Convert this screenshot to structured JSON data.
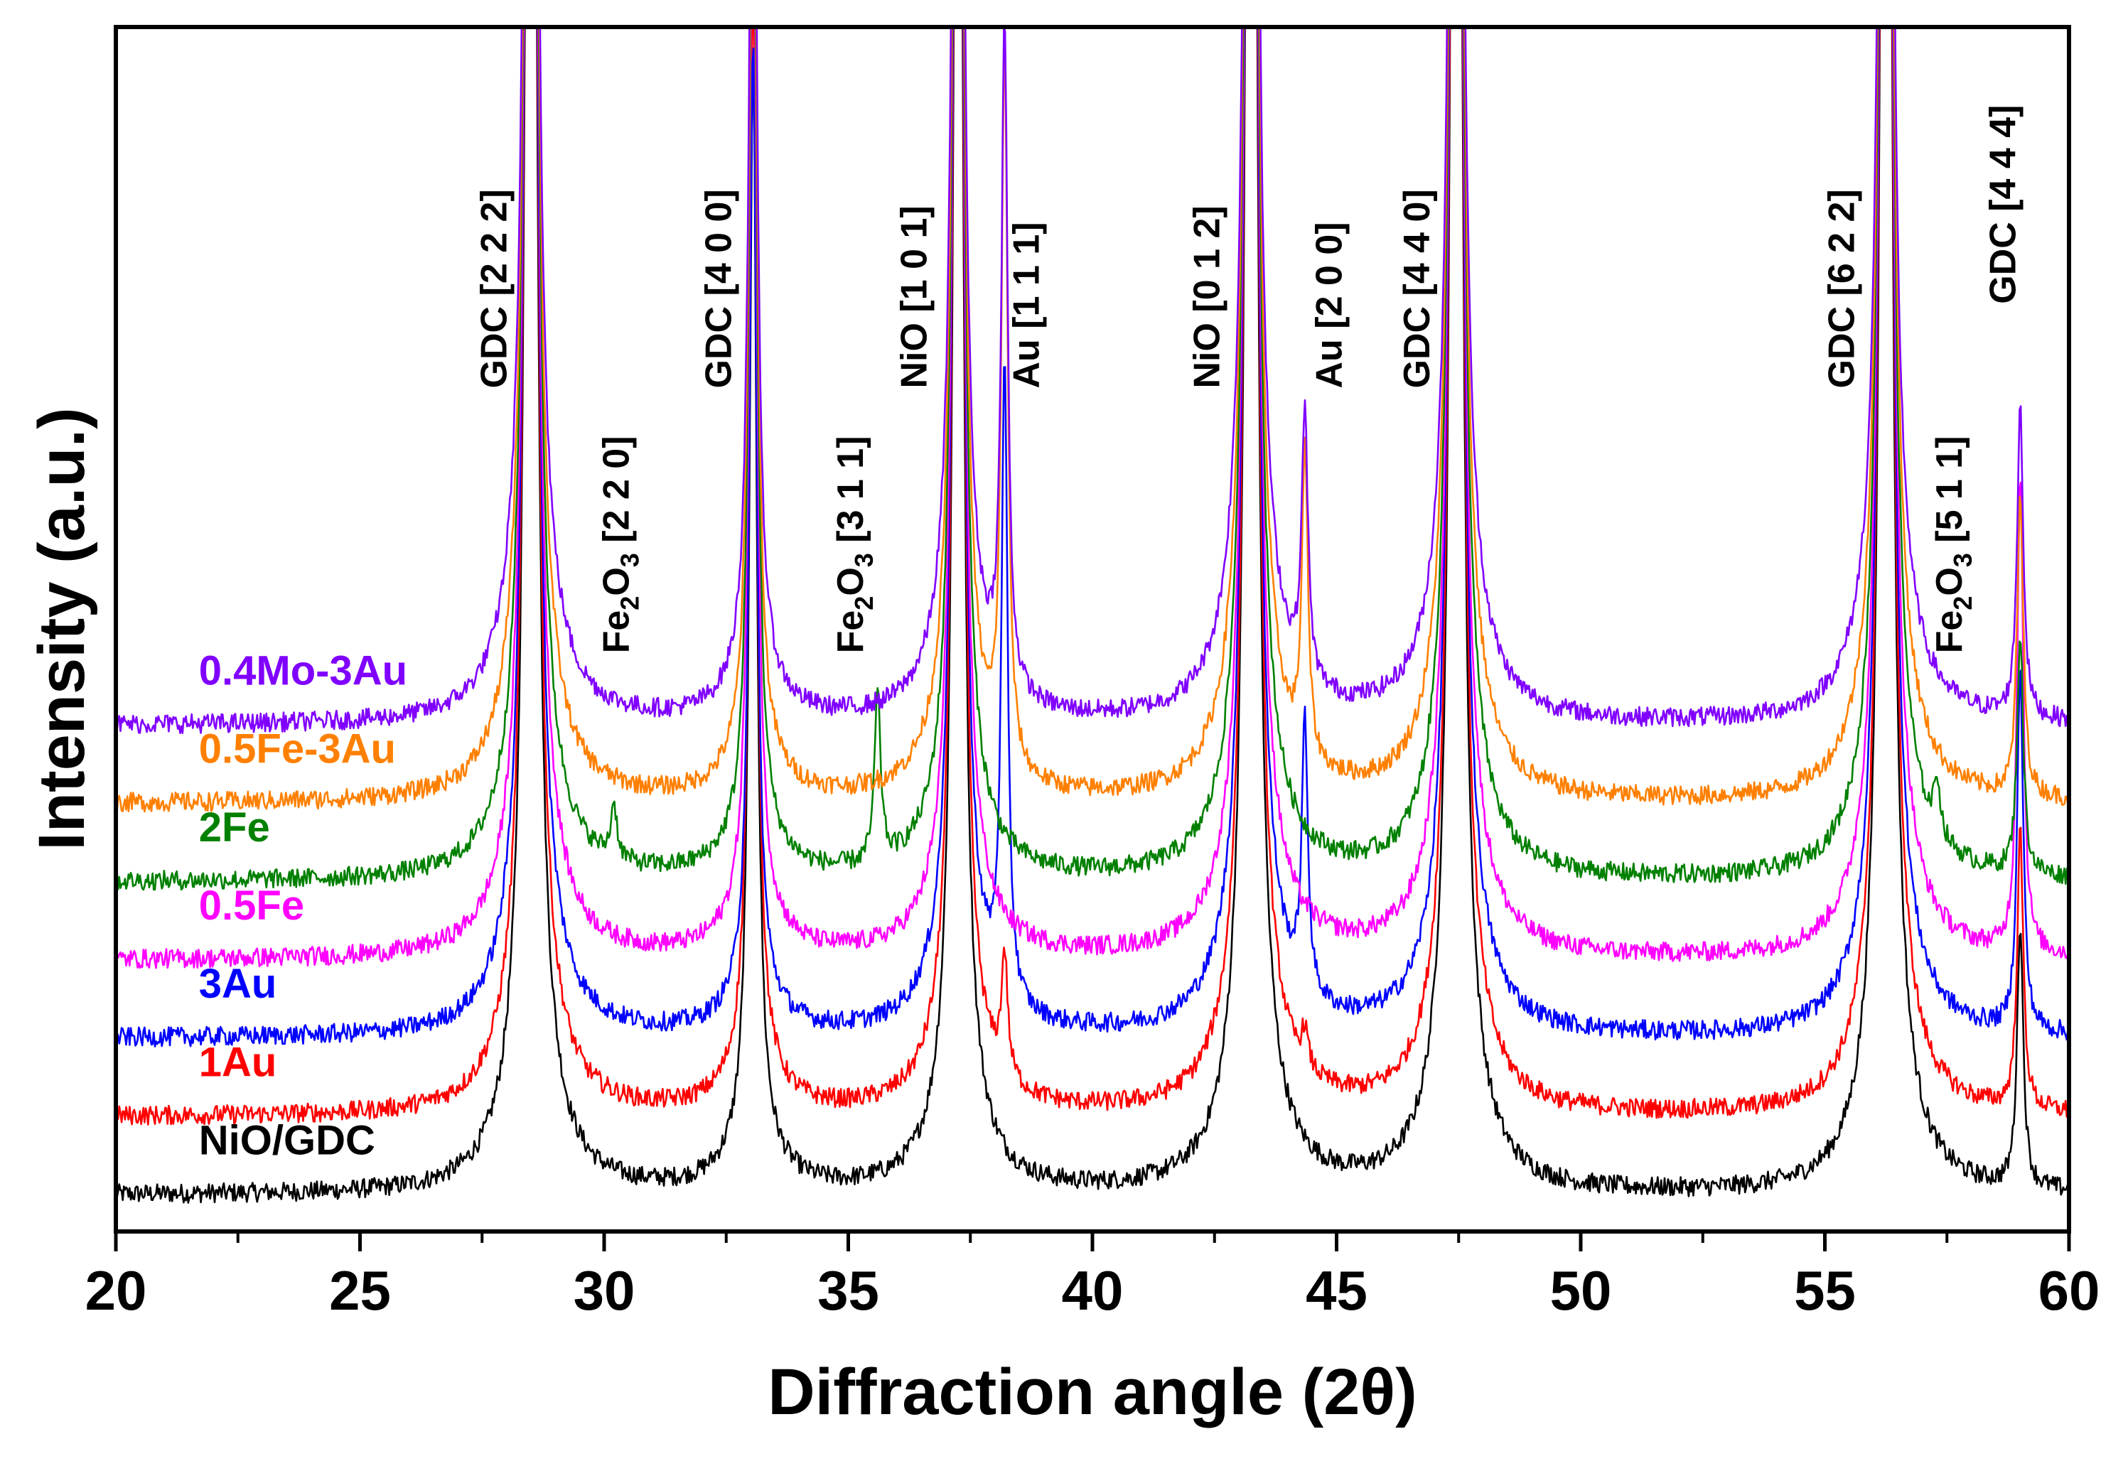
{
  "chart_data": {
    "type": "line",
    "title": "",
    "xlabel": "Diffraction angle (2θ)",
    "ylabel": "Intensity (a.u.)",
    "xlim": [
      20,
      60
    ],
    "ylim": [
      0,
      100
    ],
    "xticks": [
      20,
      25,
      30,
      35,
      40,
      45,
      50,
      55,
      60
    ],
    "x_minor_step": 2.5,
    "grid": false,
    "legend": "inline labels at left",
    "series": [
      {
        "name": "NiO/GDC",
        "color": "#000000",
        "offset": 3,
        "peaks": [
          [
            28.5,
            250
          ],
          [
            33.05,
            90
          ],
          [
            37.25,
            180
          ],
          [
            43.25,
            250
          ],
          [
            47.45,
            250
          ],
          [
            56.25,
            250
          ],
          [
            59.0,
            22
          ]
        ]
      },
      {
        "name": "1Au",
        "color": "#ff0000",
        "offset": 9.5,
        "peaks": [
          [
            28.5,
            250
          ],
          [
            33.05,
            90
          ],
          [
            37.25,
            180
          ],
          [
            38.2,
            10
          ],
          [
            43.25,
            250
          ],
          [
            44.35,
            3
          ],
          [
            47.45,
            250
          ],
          [
            56.25,
            250
          ],
          [
            59.0,
            23
          ]
        ]
      },
      {
        "name": "3Au",
        "color": "#0000ff",
        "offset": 16,
        "peaks": [
          [
            28.5,
            250
          ],
          [
            33.05,
            78
          ],
          [
            37.25,
            180
          ],
          [
            38.2,
            52
          ],
          [
            43.25,
            250
          ],
          [
            44.35,
            22
          ],
          [
            47.45,
            250
          ],
          [
            56.25,
            250
          ],
          [
            59.0,
            30
          ]
        ]
      },
      {
        "name": "0.5Fe",
        "color": "#ff00ff",
        "offset": 22.5,
        "peaks": [
          [
            28.5,
            250
          ],
          [
            33.05,
            90
          ],
          [
            37.25,
            180
          ],
          [
            43.25,
            250
          ],
          [
            47.45,
            250
          ],
          [
            56.25,
            250
          ],
          [
            59.0,
            40
          ]
        ]
      },
      {
        "name": "2Fe",
        "color": "#008000",
        "offset": 29,
        "peaks": [
          [
            28.5,
            250
          ],
          [
            30.2,
            4.5
          ],
          [
            33.05,
            90
          ],
          [
            35.6,
            14
          ],
          [
            37.25,
            180
          ],
          [
            43.25,
            250
          ],
          [
            47.45,
            250
          ],
          [
            56.25,
            250
          ],
          [
            57.3,
            4.5
          ],
          [
            59.0,
            20
          ]
        ]
      },
      {
        "name": "0.5Fe-3Au",
        "color": "#ff8000",
        "offset": 35.5,
        "peaks": [
          [
            28.5,
            250
          ],
          [
            33.05,
            90
          ],
          [
            37.25,
            180
          ],
          [
            38.2,
            60
          ],
          [
            43.25,
            250
          ],
          [
            44.35,
            25
          ],
          [
            47.45,
            250
          ],
          [
            56.25,
            250
          ],
          [
            59.0,
            25
          ]
        ]
      },
      {
        "name": "0.4Mo-3Au",
        "color": "#8000ff",
        "offset": 42,
        "peaks": [
          [
            28.5,
            250
          ],
          [
            33.05,
            90
          ],
          [
            37.25,
            180
          ],
          [
            38.2,
            55
          ],
          [
            43.25,
            250
          ],
          [
            44.35,
            22
          ],
          [
            47.45,
            250
          ],
          [
            56.25,
            250
          ],
          [
            59.0,
            26
          ]
        ]
      }
    ],
    "annotations": [
      {
        "text": "GDC [2 2 2]",
        "x": 28.0,
        "y": 70
      },
      {
        "text": "Fe",
        "sub": "2",
        "text2": "O",
        "sub2": "3",
        "text3": " [2 2 0]",
        "x": 30.5,
        "y": 48
      },
      {
        "text": "GDC [4 0 0]",
        "x": 32.6,
        "y": 70
      },
      {
        "text": "Fe",
        "sub": "2",
        "text2": "O",
        "sub2": "3",
        "text3": " [3 1 1]",
        "x": 35.3,
        "y": 48
      },
      {
        "text": "NiO [1 0 1]",
        "x": 36.6,
        "y": 70
      },
      {
        "text": "Au [1 1 1]",
        "x": 38.9,
        "y": 70
      },
      {
        "text": "NiO [0 1 2]",
        "x": 42.6,
        "y": 70
      },
      {
        "text": "Au [2 0 0]",
        "x": 45.1,
        "y": 70
      },
      {
        "text": "GDC [4 4 0]",
        "x": 46.9,
        "y": 70
      },
      {
        "text": "GDC [6 2 2]",
        "x": 55.6,
        "y": 70
      },
      {
        "text": "Fe",
        "sub": "2",
        "text2": "O",
        "sub2": "3",
        "text3": " [5 1 1]",
        "x": 57.8,
        "y": 48
      },
      {
        "text": "GDC [4 4 4]",
        "x": 58.9,
        "y": 77
      }
    ]
  }
}
